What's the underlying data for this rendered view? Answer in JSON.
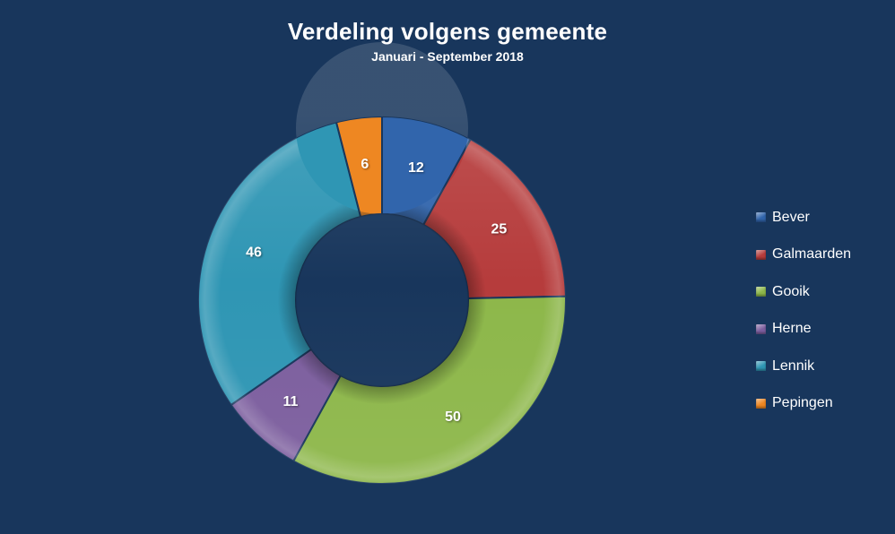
{
  "background_color": "#18365C",
  "text_color": "#FFFFFF",
  "header": {
    "title": "Verdeling volgens gemeente",
    "subtitle": "Januari - September 2018"
  },
  "chart_data": {
    "type": "pie",
    "subtype": "donut",
    "title": "Verdeling volgens gemeente",
    "subtitle": "Januari - September 2018",
    "categories": [
      "Bever",
      "Galmaarden",
      "Gooik",
      "Herne",
      "Lennik",
      "Pepingen"
    ],
    "values": [
      12,
      25,
      50,
      11,
      46,
      6
    ],
    "colors": [
      "#3165AC",
      "#B63C3C",
      "#8DB74A",
      "#7C5E9E",
      "#2F96B4",
      "#EE8722"
    ],
    "total": 150,
    "data_labels": "values",
    "label_color": "#FFFFFF",
    "start_angle_deg": 0,
    "direction": "clockwise",
    "inner_radius_ratio": 0.47,
    "legend_position": "right"
  }
}
